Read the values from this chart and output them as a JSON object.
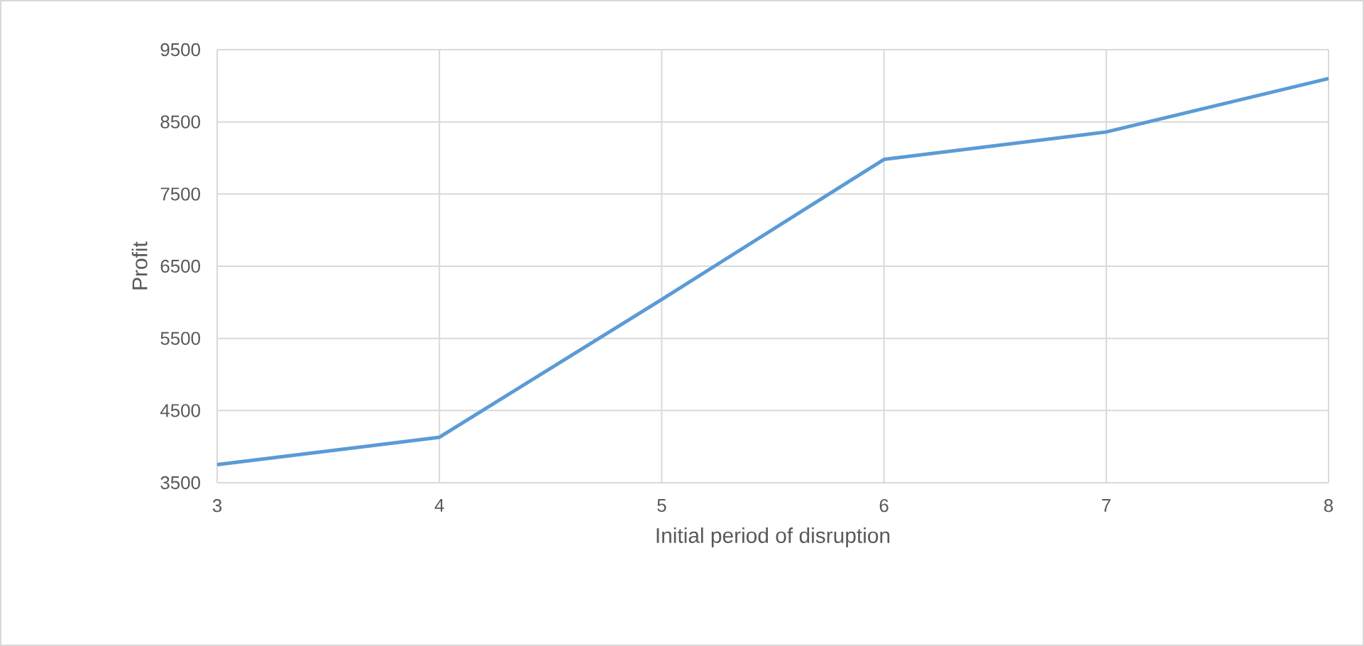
{
  "chart_data": {
    "type": "line",
    "xlabel": "Initial period of disruption",
    "ylabel": "Profit",
    "x": [
      3,
      4,
      5,
      6,
      7,
      8
    ],
    "series": [
      {
        "color": "#5b9bd5",
        "values": [
          3750,
          4130,
          6040,
          7980,
          8360,
          9100
        ]
      }
    ],
    "xlim": [
      3,
      8
    ],
    "xticks": [
      3,
      4,
      5,
      6,
      7,
      8
    ],
    "ylim": [
      3500,
      9500
    ],
    "yticks": [
      3500,
      4500,
      5500,
      6500,
      7500,
      8500,
      9500
    ],
    "grid": true,
    "marker": "none",
    "line_style": "solid"
  }
}
